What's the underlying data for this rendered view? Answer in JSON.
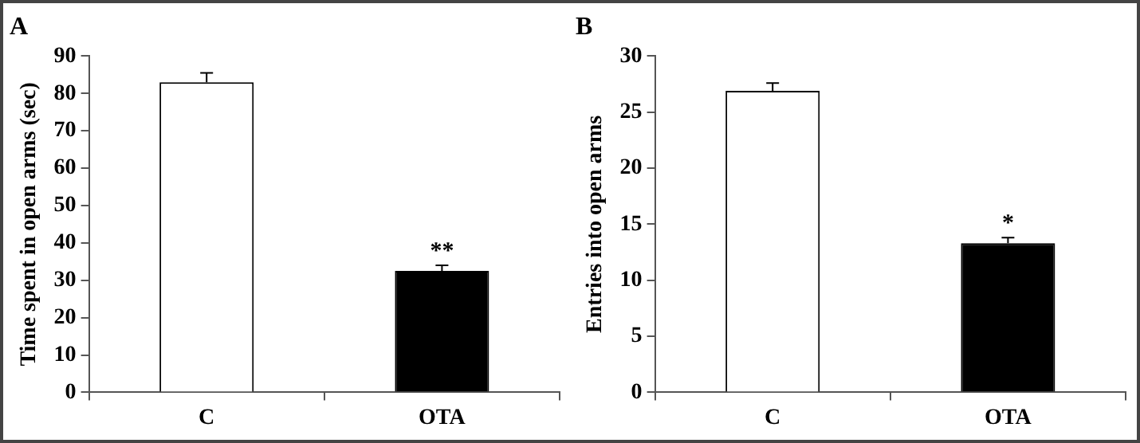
{
  "chart_data": [
    {
      "type": "bar",
      "title": "A",
      "ylabel": "Time spent in open arms (sec)",
      "categories": [
        "C",
        "OTA"
      ],
      "values": [
        83,
        32.5
      ],
      "errors": [
        2.5,
        1.5
      ],
      "colors": [
        "#ffffff",
        "#000000"
      ],
      "ylim": [
        0,
        90
      ],
      "yticks": [
        0,
        10,
        20,
        30,
        40,
        50,
        60,
        70,
        80,
        90
      ],
      "grid": false,
      "legend": false,
      "annotations": [
        {
          "text": "**",
          "x": "OTA",
          "y": 34
        }
      ]
    },
    {
      "type": "bar",
      "title": "B",
      "ylabel": "Entries into open arms",
      "categories": [
        "C",
        "OTA"
      ],
      "values": [
        26.9,
        13.3
      ],
      "errors": [
        0.7,
        0.5
      ],
      "colors": [
        "#ffffff",
        "#000000"
      ],
      "ylim": [
        0,
        30
      ],
      "yticks": [
        0,
        5,
        10,
        15,
        20,
        25,
        30
      ],
      "grid": false,
      "legend": false,
      "annotations": [
        {
          "text": "*",
          "x": "OTA",
          "y": 13.8
        }
      ]
    }
  ]
}
